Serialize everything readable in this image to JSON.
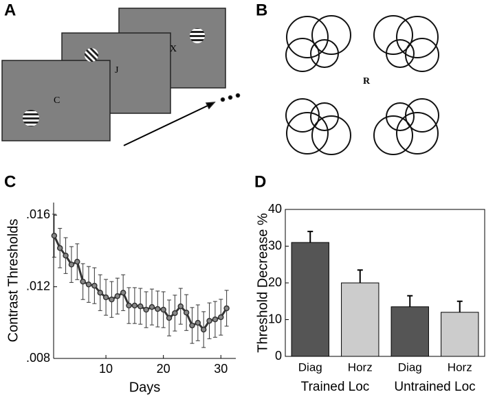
{
  "panels": {
    "labels": [
      "A",
      "B",
      "C",
      "D"
    ]
  },
  "diagram_a": {
    "letters": [
      "C",
      "J",
      "X"
    ]
  },
  "diagram_b": {
    "letter": "R"
  },
  "chart_data": [
    {
      "type": "line",
      "x_label": "Days",
      "y_label": "Contrast Thresholds",
      "x": [
        1,
        2,
        3,
        4,
        5,
        6,
        7,
        8,
        9,
        10,
        11,
        12,
        13,
        14,
        15,
        16,
        17,
        18,
        19,
        20,
        21,
        22,
        23,
        24,
        25,
        26,
        27,
        28,
        29,
        30,
        31
      ],
      "series": [
        {
          "color": "#333333",
          "values": [
            0.01485,
            0.01416,
            0.01374,
            0.01324,
            0.0134,
            0.01229,
            0.01213,
            0.01206,
            0.01167,
            0.01141,
            0.01129,
            0.01148,
            0.01167,
            0.01095,
            0.01095,
            0.01091,
            0.01072,
            0.01087,
            0.01076,
            0.01072,
            0.01026,
            0.01053,
            0.01091,
            0.01056,
            0.00984,
            0.00999,
            0.00961,
            0.0101,
            0.01018,
            0.0103,
            0.0108
          ],
          "errors": [
            0.0012,
            0.0011,
            0.001,
            0.001,
            0.001,
            0.001,
            0.001,
            0.001,
            0.001,
            0.001,
            0.001,
            0.001,
            0.001,
            0.001,
            0.001,
            0.001,
            0.001,
            0.001,
            0.001,
            0.001,
            0.001,
            0.001,
            0.001,
            0.001,
            0.001,
            0.001,
            0.001,
            0.001,
            0.001,
            0.001,
            0.001
          ]
        }
      ],
      "xlim": [
        0.9,
        32.6
      ],
      "xticks": [
        10,
        20,
        30
      ],
      "ylim": [
        0.008,
        0.0167
      ],
      "yticks": [
        {
          "value": 0.008,
          "label": ".008"
        },
        {
          "value": 0.012,
          "label": ".012"
        },
        {
          "value": 0.016,
          "label": ".016"
        }
      ]
    },
    {
      "type": "bar",
      "y_label": "Threshold Decrease %",
      "categories": [
        "Diag",
        "Horz",
        "Diag",
        "Horz"
      ],
      "groups": [
        "Trained Loc",
        "Untrained Loc"
      ],
      "values": [
        31,
        20,
        13.5,
        12
      ],
      "errors": [
        3,
        3.5,
        3,
        3
      ],
      "colors": [
        "#555555",
        "#cccccc",
        "#555555",
        "#cccccc"
      ],
      "ylim": [
        0,
        40
      ],
      "yticks": [
        0,
        10,
        20,
        30,
        40
      ]
    }
  ]
}
